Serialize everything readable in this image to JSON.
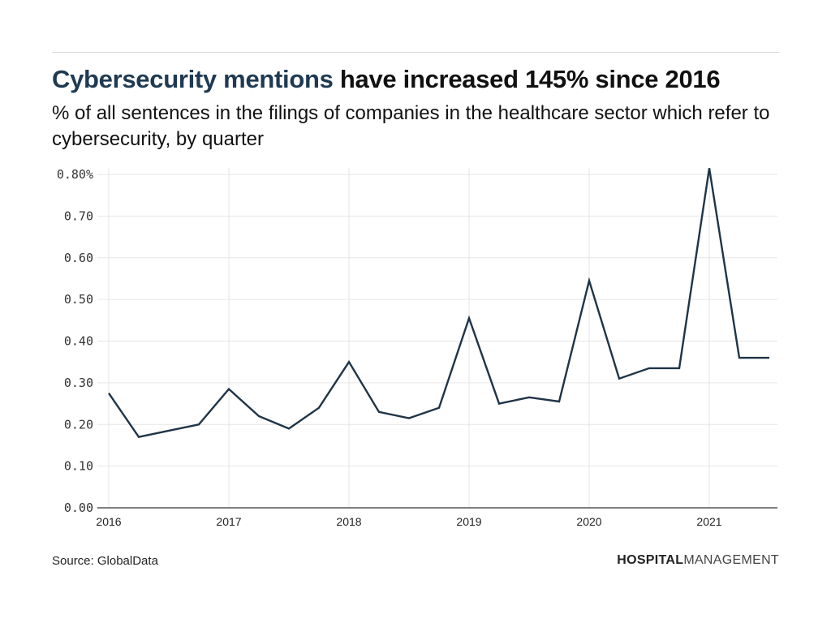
{
  "header": {
    "title_highlight": "Cybersecurity mentions",
    "title_rest": " have increased 145% since 2016",
    "subtitle": "% of all sentences in the filings of companies in the healthcare sector which refer to cybersecurity, by quarter"
  },
  "footer": {
    "source": "Source: GlobalData",
    "brand_bold": "HOSPITAL",
    "brand_light": "MANAGEMENT"
  },
  "colors": {
    "line": "#1f3447",
    "grid": "#e6e6e6",
    "axis": "#555555",
    "title_highlight": "#1f3a52"
  },
  "chart_data": {
    "type": "line",
    "title": "Cybersecurity mentions have increased 145% since 2016",
    "subtitle": "% of all sentences in the filings of companies in the healthcare sector which refer to cybersecurity, by quarter",
    "xlabel": "",
    "ylabel": "",
    "x_ticks": [
      "2016",
      "2017",
      "2018",
      "2019",
      "2020",
      "2021"
    ],
    "y_ticks": [
      "0.00",
      "0.10",
      "0.20",
      "0.30",
      "0.40",
      "0.50",
      "0.60",
      "0.70",
      "0.80%"
    ],
    "ylim": [
      0,
      0.8
    ],
    "xlim": [
      2016.0,
      2021.5
    ],
    "grid": true,
    "legend": "none",
    "series": [
      {
        "name": "Cybersecurity mentions (%)",
        "x": [
          "2016 Q1",
          "2016 Q2",
          "2016 Q3",
          "2016 Q4",
          "2017 Q1",
          "2017 Q2",
          "2017 Q3",
          "2017 Q4",
          "2018 Q1",
          "2018 Q2",
          "2018 Q3",
          "2018 Q4",
          "2019 Q1",
          "2019 Q2",
          "2019 Q3",
          "2019 Q4",
          "2020 Q1",
          "2020 Q2",
          "2020 Q3",
          "2020 Q4",
          "2021 Q1",
          "2021 Q2",
          "2021 Q3"
        ],
        "values": [
          0.275,
          0.17,
          0.185,
          0.2,
          0.285,
          0.22,
          0.19,
          0.24,
          0.35,
          0.23,
          0.215,
          0.24,
          0.455,
          0.25,
          0.265,
          0.255,
          0.545,
          0.31,
          0.335,
          0.335,
          0.815,
          0.36,
          0.36
        ]
      }
    ]
  }
}
